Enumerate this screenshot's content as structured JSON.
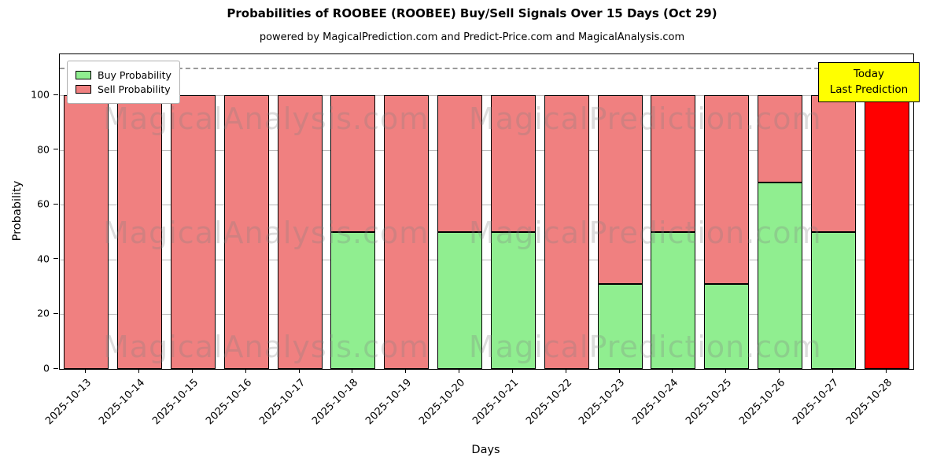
{
  "title": "Probabilities of ROOBEE (ROOBEE) Buy/Sell Signals Over 15 Days (Oct 29)",
  "subtitle": "powered by MagicalPrediction.com and Predict-Price.com and MagicalAnalysis.com",
  "chart_data": {
    "type": "bar",
    "stacked": true,
    "title": "Probabilities of ROOBEE (ROOBEE) Buy/Sell Signals Over 15 Days (Oct 29)",
    "xlabel": "Days",
    "ylabel": "Probability",
    "ylim": [
      0,
      115
    ],
    "yticks": [
      0,
      20,
      40,
      60,
      80,
      100
    ],
    "grid": true,
    "legend_position": "upper-left",
    "categories": [
      "2025-10-13",
      "2025-10-14",
      "2025-10-15",
      "2025-10-16",
      "2025-10-17",
      "2025-10-18",
      "2025-10-19",
      "2025-10-20",
      "2025-10-21",
      "2025-10-22",
      "2025-10-23",
      "2025-10-24",
      "2025-10-25",
      "2025-10-26",
      "2025-10-27",
      "2025-10-28"
    ],
    "series": [
      {
        "name": "Buy Probability",
        "color": "#90ee90",
        "values": [
          0,
          0,
          0,
          0,
          0,
          50,
          0,
          50,
          50,
          0,
          31,
          50,
          31,
          68,
          50,
          0
        ]
      },
      {
        "name": "Sell Probability",
        "color": "#f08080",
        "values": [
          100,
          100,
          100,
          100,
          100,
          50,
          100,
          50,
          50,
          100,
          69,
          50,
          69,
          32,
          50,
          100
        ]
      }
    ],
    "today_bar": {
      "index": 15,
      "color": "#ff0000"
    },
    "dashed_line_y": 110,
    "annotation": {
      "line1": "Today",
      "line2": "Last Prediction",
      "bg": "#ffff00"
    },
    "watermarks": [
      "MagicalAnalysis.com",
      "MagicalPrediction.com"
    ]
  }
}
